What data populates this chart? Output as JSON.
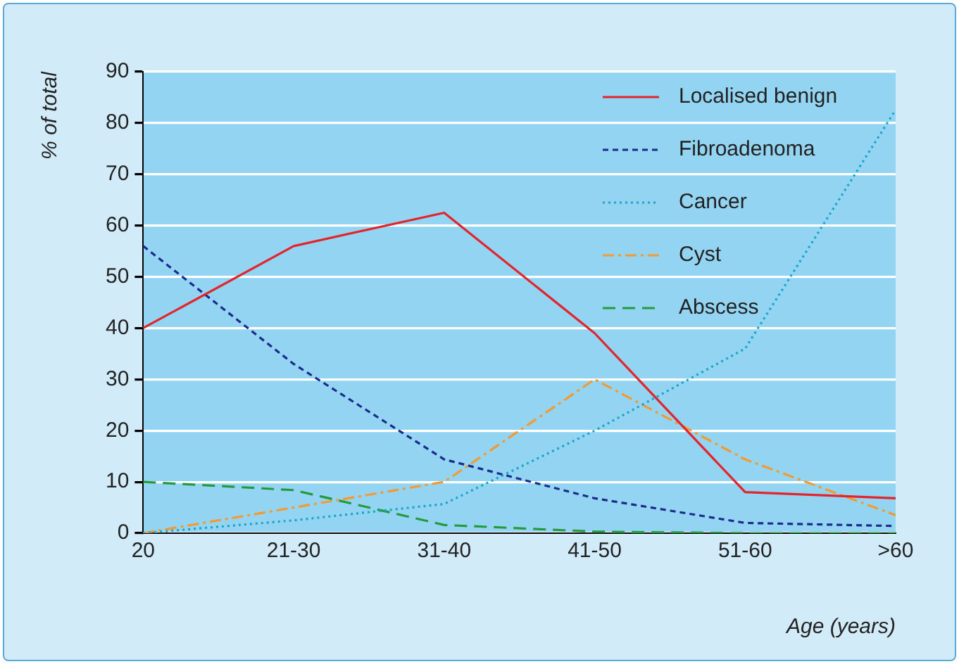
{
  "chart_data": {
    "type": "line",
    "xlabel": "Age (years)",
    "ylabel": "% of total",
    "categories": [
      "20",
      "21-30",
      "31-40",
      "41-50",
      "51-60",
      ">60"
    ],
    "series": [
      {
        "name": "Localised benign",
        "color": "#e3242b",
        "line_style": "solid",
        "values": [
          40,
          56,
          62.5,
          39,
          8,
          6.8
        ]
      },
      {
        "name": "Fibroadenoma",
        "color": "#1c2a8c",
        "line_style": "dashed",
        "values": [
          56,
          33,
          14.4,
          6.8,
          2,
          1.4
        ]
      },
      {
        "name": "Cancer",
        "color": "#1aa6c8",
        "line_style": "dotted",
        "values": [
          0,
          2.5,
          5.7,
          20,
          36,
          82.6
        ]
      },
      {
        "name": "Cyst",
        "color": "#f39a32",
        "line_style": "dashdot",
        "values": [
          0,
          5,
          10,
          30,
          14.4,
          3.5
        ]
      },
      {
        "name": "Abscess",
        "color": "#239a3c",
        "line_style": "longdash",
        "values": [
          10,
          8.4,
          1.6,
          0.3,
          0,
          0
        ]
      }
    ],
    "ylim": [
      0,
      90
    ],
    "yticks": [
      0,
      10,
      20,
      30,
      40,
      50,
      60,
      70,
      80,
      90
    ],
    "grid": "y",
    "legend": "top right",
    "marker": "none"
  }
}
